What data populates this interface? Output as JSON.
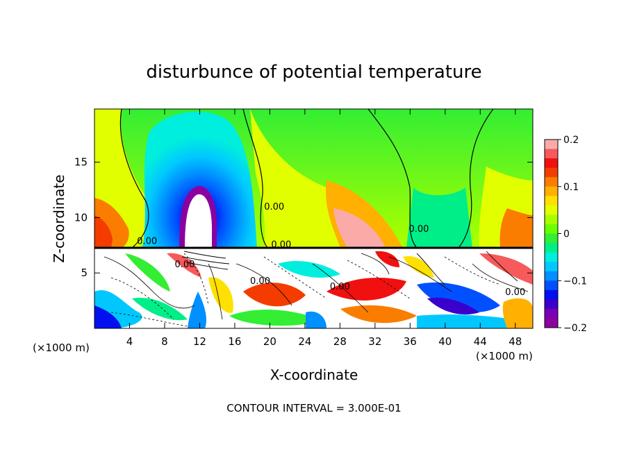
{
  "chart_data": {
    "type": "heatmap",
    "title": "disturbunce of potential temperature",
    "xlabel": "X-coordinate",
    "ylabel": "Z-coordinate",
    "x_unit_left": "(×1000 m)",
    "x_unit_right": "(×1000 m)",
    "footer": "CONTOUR INTERVAL = 3.000E-01",
    "xlim": [
      0,
      50
    ],
    "ylim": [
      0,
      19.8
    ],
    "x_ticks": [
      4,
      8,
      12,
      16,
      20,
      24,
      28,
      32,
      36,
      40,
      44,
      48
    ],
    "y_ticks": [
      5,
      10,
      15
    ],
    "colorbar": {
      "min": -0.2,
      "max": 0.2,
      "tick_values": [
        0.2,
        0.1,
        0,
        -0.1,
        -0.2
      ],
      "tick_labels": [
        "0.2",
        "0.1",
        "0",
        "−0.1",
        "−0.2"
      ],
      "colors": [
        "#fbaaaa",
        "#f65a5a",
        "#f01010",
        "#f53c00",
        "#fa7d00",
        "#ffb000",
        "#ffe000",
        "#e2ff00",
        "#a8ff00",
        "#6cff00",
        "#33ee33",
        "#00ee88",
        "#00eedd",
        "#00c8ff",
        "#0090ff",
        "#0050ff",
        "#0010ee",
        "#3a00cc",
        "#7a00b4",
        "#8c00a0"
      ]
    },
    "contour_labels": [
      {
        "text": "0.00",
        "x": 6,
        "z": 7.6
      },
      {
        "text": "0.00",
        "x": 20.5,
        "z": 10.7
      },
      {
        "text": "0.00",
        "x": 21.3,
        "z": 7.3
      },
      {
        "text": "0.00",
        "x": 10.3,
        "z": 5.5
      },
      {
        "text": "0.00",
        "x": 18.9,
        "z": 4.0
      },
      {
        "text": "0.00",
        "x": 28,
        "z": 3.5
      },
      {
        "text": "0.00",
        "x": 37,
        "z": 8.7
      },
      {
        "text": "0.00",
        "x": 48,
        "z": 3.0
      }
    ]
  }
}
